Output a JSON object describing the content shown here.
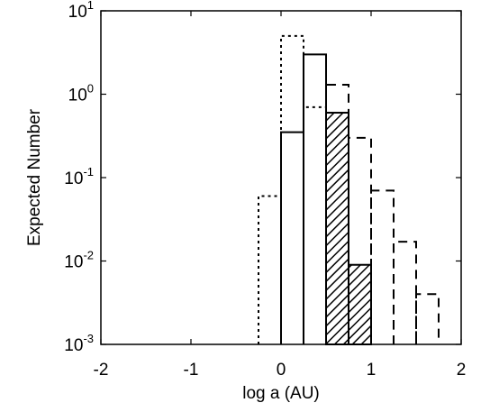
{
  "chart_data": {
    "type": "histogram",
    "x_label": "log a (AU)",
    "y_label": "Expected Number",
    "xlim": [
      -2,
      2
    ],
    "ylim": [
      0.001,
      10
    ],
    "y_log": true,
    "xticks": [
      -2,
      -1,
      0,
      1,
      2
    ],
    "yticks": [
      {
        "value": 10,
        "label": "10",
        "sup": "1"
      },
      {
        "value": 1,
        "label": "10",
        "sup": "0"
      },
      {
        "value": 0.1,
        "label": "10",
        "sup": "-1"
      },
      {
        "value": 0.01,
        "label": "10",
        "sup": "-2"
      },
      {
        "value": 0.001,
        "label": "10",
        "sup": "-3"
      }
    ],
    "series": [
      {
        "color": "#000000",
        "style": "dotted",
        "bins": [
          -0.25,
          0,
          0.25,
          0.5
        ],
        "values": [
          0.06,
          5,
          0.7
        ]
      },
      {
        "color": "#000000",
        "style": "dashed",
        "bins": [
          0.5,
          0.75,
          1,
          1.25,
          1.5,
          1.75
        ],
        "values": [
          1.3,
          0.3,
          0.07,
          0.017,
          0.004
        ]
      },
      {
        "color": "#000000",
        "style": "solid",
        "bins": [
          0,
          0.25,
          0.5
        ],
        "values": [
          0.35,
          3
        ]
      },
      {
        "color": "#000000",
        "style": "hatched",
        "bins": [
          0.5,
          0.75,
          1
        ],
        "values": [
          0.6,
          0.009
        ]
      }
    ]
  }
}
